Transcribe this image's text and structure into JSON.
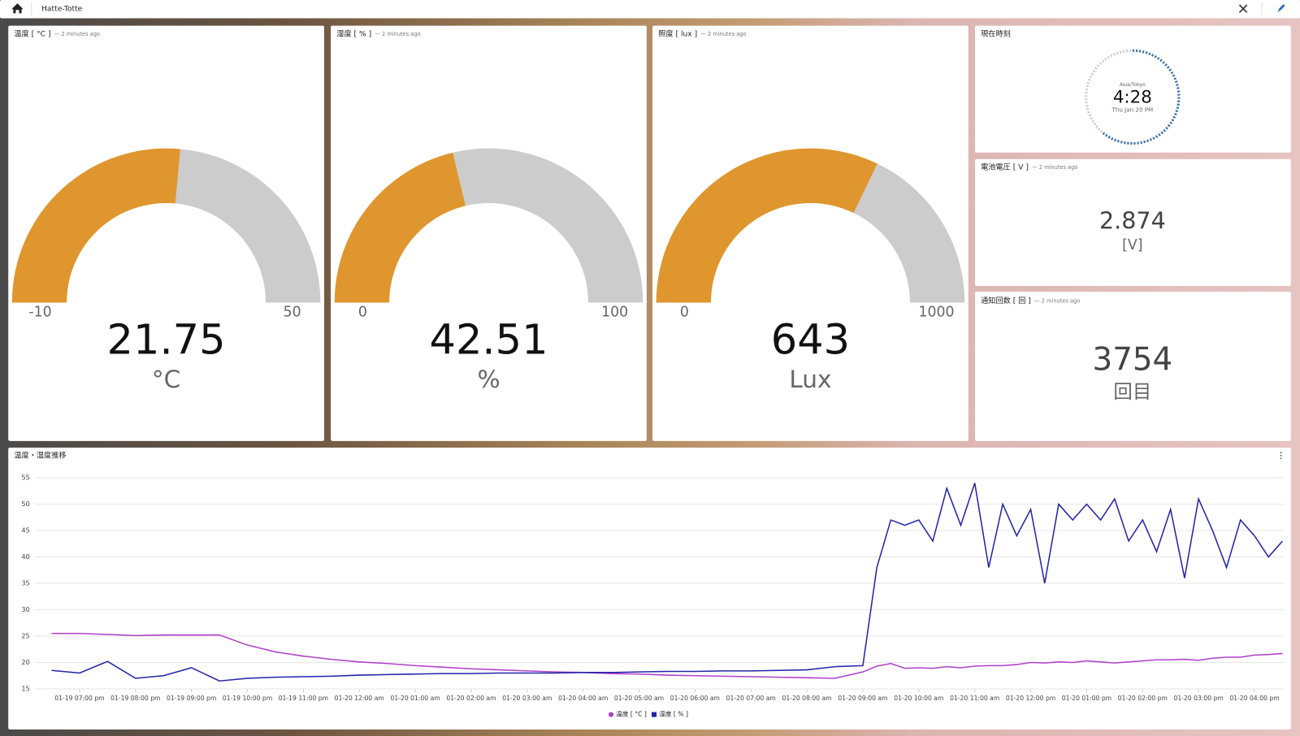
{
  "header": {
    "title": "Hatte-Totte"
  },
  "gauges": [
    {
      "title": "温度 [ °C ]",
      "updated": "— 2 minutes ago",
      "min": -10,
      "max": 50,
      "value": 21.75,
      "unit": "°C",
      "color": "#e0962e"
    },
    {
      "title": "湿度 [ % ]",
      "updated": "— 2 minutes ago",
      "min": 0,
      "max": 100,
      "value": 42.51,
      "unit": "%",
      "color": "#e0962e"
    },
    {
      "title": "照度 [ lux ]",
      "updated": "— 2 minutes ago",
      "min": 0,
      "max": 1000,
      "value": 643,
      "unit": "Lux",
      "color": "#e0962e"
    }
  ],
  "clock": {
    "title": "現在時刻",
    "timezone": "Asia/Tokyo",
    "time": "4:28",
    "date": "Thu Jan 20 PM"
  },
  "cards": [
    {
      "title": "電池電圧 [ V ]",
      "updated": "— 2 minutes ago",
      "value": 2.874,
      "unit": "[V]"
    },
    {
      "title": "通知回数 [ 回 ]",
      "updated": "— 2 minutes ago",
      "value": 3754,
      "unit": "回目"
    }
  ],
  "chart_data": {
    "type": "line",
    "title": "温度・湿度推移",
    "x": [
      "01-19 06:30 pm",
      "01-19 07:00 pm",
      "01-19 07:30 pm",
      "01-19 08:00 pm",
      "01-19 08:30 pm",
      "01-19 09:00 pm",
      "01-19 09:30 pm",
      "01-19 10:00 pm",
      "01-19 10:30 pm",
      "01-19 11:00 pm",
      "01-19 11:30 pm",
      "01-20 12:00 am",
      "01-20 12:30 am",
      "01-20 01:00 am",
      "01-20 01:30 am",
      "01-20 02:00 am",
      "01-20 02:30 am",
      "01-20 03:00 am",
      "01-20 03:30 am",
      "01-20 04:00 am",
      "01-20 04:30 am",
      "01-20 05:00 am",
      "01-20 05:30 am",
      "01-20 06:00 am",
      "01-20 06:30 am",
      "01-20 07:00 am",
      "01-20 07:30 am",
      "01-20 08:00 am",
      "01-20 08:30 am",
      "01-20 09:00 am",
      "01-20 09:15 am",
      "01-20 09:30 am",
      "01-20 09:45 am",
      "01-20 10:00 am",
      "01-20 10:15 am",
      "01-20 10:30 am",
      "01-20 10:45 am",
      "01-20 11:00 am",
      "01-20 11:15 am",
      "01-20 11:30 am",
      "01-20 11:45 am",
      "01-20 12:00 pm",
      "01-20 12:15 pm",
      "01-20 12:30 pm",
      "01-20 12:45 pm",
      "01-20 01:00 pm",
      "01-20 01:15 pm",
      "01-20 01:30 pm",
      "01-20 01:45 pm",
      "01-20 02:00 pm",
      "01-20 02:15 pm",
      "01-20 02:30 pm",
      "01-20 02:45 pm",
      "01-20 03:00 pm",
      "01-20 03:15 pm",
      "01-20 03:30 pm",
      "01-20 03:45 pm",
      "01-20 04:00 pm",
      "01-20 04:15 pm",
      "01-20 04:30 pm"
    ],
    "series": [
      {
        "name": "温度 [ °C ]",
        "color": "#b041c8",
        "values": [
          25.5,
          25.5,
          25.3,
          25.1,
          25.2,
          25.2,
          25.2,
          23.3,
          22.0,
          21.2,
          20.6,
          20.1,
          19.8,
          19.4,
          19.1,
          18.8,
          18.6,
          18.4,
          18.2,
          18.1,
          17.9,
          17.8,
          17.6,
          17.5,
          17.4,
          17.3,
          17.2,
          17.1,
          17.0,
          18.2,
          19.3,
          19.8,
          18.9,
          19.0,
          18.9,
          19.2,
          19.0,
          19.3,
          19.4,
          19.4,
          19.6,
          20.0,
          19.9,
          20.1,
          20.0,
          20.3,
          20.1,
          19.9,
          20.1,
          20.3,
          20.5,
          20.5,
          20.6,
          20.4,
          20.8,
          21.0,
          21.0,
          21.4,
          21.5,
          21.7
        ]
      },
      {
        "name": "湿度 [ % ]",
        "color": "#2424a8",
        "values": [
          18.5,
          18.0,
          20.2,
          17.0,
          17.5,
          19.0,
          16.5,
          17.0,
          17.2,
          17.3,
          17.4,
          17.6,
          17.7,
          17.8,
          17.9,
          17.9,
          18.0,
          18.0,
          18.0,
          18.1,
          18.1,
          18.2,
          18.3,
          18.3,
          18.4,
          18.4,
          18.5,
          18.6,
          19.2,
          19.4,
          38,
          47,
          46,
          47,
          43,
          53,
          46,
          54,
          38,
          50,
          44,
          49,
          35,
          50,
          47,
          50,
          47,
          51,
          43,
          47,
          41,
          49,
          36,
          51,
          45,
          38,
          47,
          44,
          40,
          43
        ]
      }
    ],
    "xlim": [
      "01-19 06:12 pm",
      "01-20 04:31 pm"
    ],
    "xticks": [
      "01-19 07:00 pm",
      "01-19 08:00 pm",
      "01-19 09:00 pm",
      "01-19 10:00 pm",
      "01-19 11:00 pm",
      "01-20 12:00 am",
      "01-20 01:00 am",
      "01-20 02:00 am",
      "01-20 03:00 am",
      "01-20 04:00 am",
      "01-20 05:00 am",
      "01-20 06:00 am",
      "01-20 07:00 am",
      "01-20 08:00 am",
      "01-20 09:00 am",
      "01-20 10:00 am",
      "01-20 11:00 am",
      "01-20 12:00 pm",
      "01-20 01:00 pm",
      "01-20 02:00 pm",
      "01-20 03:00 pm",
      "01-20 04:00 pm"
    ],
    "ylim": [
      15,
      56
    ],
    "yticks": [
      15,
      20,
      25,
      30,
      35,
      40,
      45,
      50,
      55
    ],
    "grid": true
  }
}
